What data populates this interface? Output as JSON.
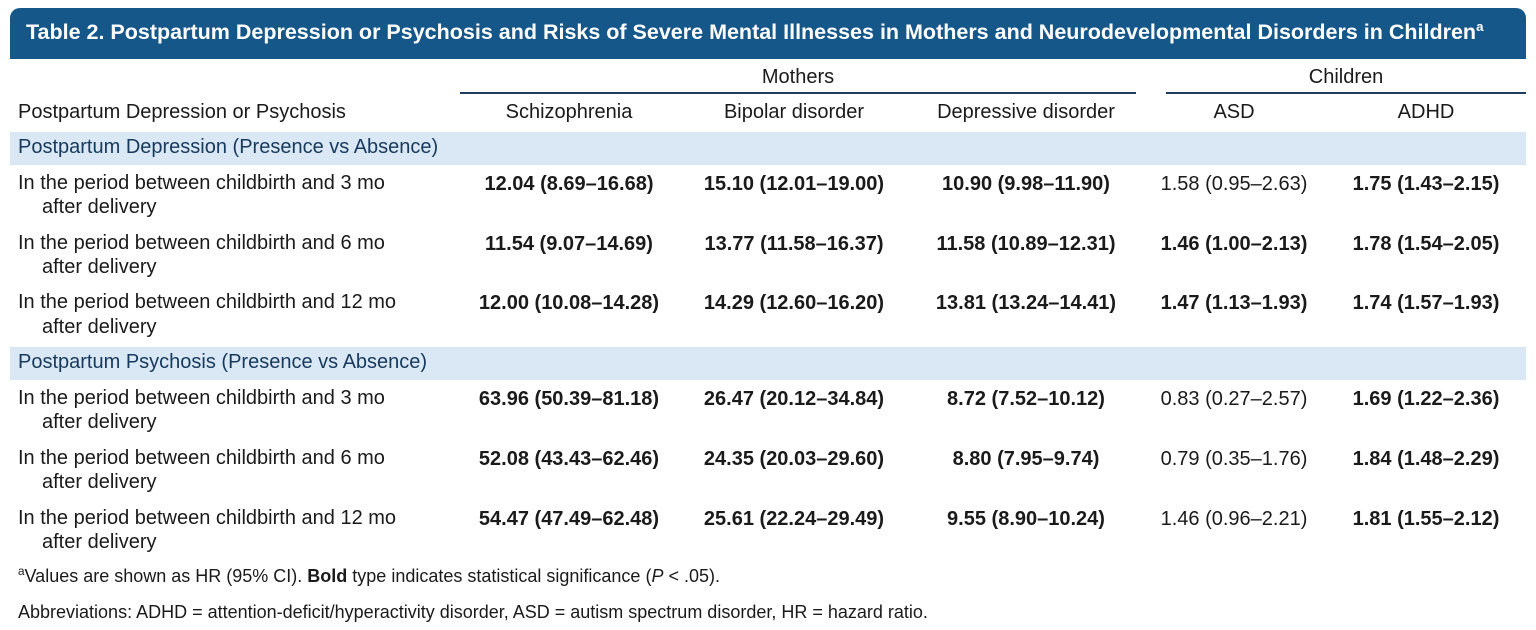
{
  "colors": {
    "header_bg": "#16578A",
    "band_bg": "#D9E8F4",
    "rule": "#1E3D5C",
    "band_text": "#17395C",
    "text": "#1A1A1A"
  },
  "title": {
    "text": "Table 2. Postpartum Depression or Psychosis and Risks of Severe Mental Illnesses in Mothers and Neurodevelopmental Disorders in Children",
    "sup": "a"
  },
  "table": {
    "stub_header": "Postpartum Depression or Psychosis",
    "group_headers": {
      "mothers": "Mothers",
      "children": "Children"
    },
    "columns": [
      "Schizophrenia",
      "Bipolar disorder",
      "Depressive disorder",
      "ASD",
      "ADHD"
    ],
    "sections": [
      {
        "label": "Postpartum Depression (Presence vs Absence)",
        "rows": [
          {
            "label": "In the period between childbirth and 3 mo after delivery",
            "cells": [
              {
                "t": "12.04 (8.69–16.68)",
                "b": true
              },
              {
                "t": "15.10 (12.01–19.00)",
                "b": true
              },
              {
                "t": "10.90 (9.98–11.90)",
                "b": true
              },
              {
                "t": "1.58 (0.95–2.63)",
                "b": false
              },
              {
                "t": "1.75 (1.43–2.15)",
                "b": true
              }
            ]
          },
          {
            "label": "In the period between childbirth and 6 mo after delivery",
            "cells": [
              {
                "t": "11.54 (9.07–14.69)",
                "b": true
              },
              {
                "t": "13.77 (11.58–16.37)",
                "b": true
              },
              {
                "t": "11.58 (10.89–12.31)",
                "b": true
              },
              {
                "t": "1.46 (1.00–2.13)",
                "b": true
              },
              {
                "t": "1.78 (1.54–2.05)",
                "b": true
              }
            ]
          },
          {
            "label": "In the period between childbirth and 12 mo after delivery",
            "cells": [
              {
                "t": "12.00 (10.08–14.28)",
                "b": true
              },
              {
                "t": "14.29 (12.60–16.20)",
                "b": true
              },
              {
                "t": "13.81 (13.24–14.41)",
                "b": true
              },
              {
                "t": "1.47 (1.13–1.93)",
                "b": true
              },
              {
                "t": "1.74 (1.57–1.93)",
                "b": true
              }
            ]
          }
        ]
      },
      {
        "label": "Postpartum Psychosis (Presence vs Absence)",
        "rows": [
          {
            "label": "In the period between childbirth and 3 mo after delivery",
            "cells": [
              {
                "t": "63.96 (50.39–81.18)",
                "b": true
              },
              {
                "t": "26.47 (20.12–34.84)",
                "b": true
              },
              {
                "t": "8.72 (7.52–10.12)",
                "b": true
              },
              {
                "t": "0.83 (0.27–2.57)",
                "b": false
              },
              {
                "t": "1.69 (1.22–2.36)",
                "b": true
              }
            ]
          },
          {
            "label": "In the period between childbirth and 6 mo after delivery",
            "cells": [
              {
                "t": "52.08 (43.43–62.46)",
                "b": true
              },
              {
                "t": "24.35 (20.03–29.60)",
                "b": true
              },
              {
                "t": "8.80 (7.95–9.74)",
                "b": true
              },
              {
                "t": "0.79 (0.35–1.76)",
                "b": false
              },
              {
                "t": "1.84 (1.48–2.29)",
                "b": true
              }
            ]
          },
          {
            "label": "In the period between childbirth and 12 mo after delivery",
            "cells": [
              {
                "t": "54.47 (47.49–62.48)",
                "b": true
              },
              {
                "t": "25.61 (22.24–29.49)",
                "b": true
              },
              {
                "t": "9.55 (8.90–10.24)",
                "b": true
              },
              {
                "t": "1.46 (0.96–2.21)",
                "b": false
              },
              {
                "t": "1.81 (1.55–2.12)",
                "b": true
              }
            ]
          }
        ]
      }
    ]
  },
  "footnotes": {
    "a": {
      "sup": "a",
      "t1": "Values are shown as HR (95% CI). ",
      "bold": "Bold",
      "t2": " type indicates statistical significance (",
      "italic": "P",
      "t3": " < .05)."
    },
    "abbreviations": "Abbreviations: ADHD = attention-deficit/hyperactivity disorder, ASD = autism spectrum disorder, HR = hazard ratio."
  }
}
